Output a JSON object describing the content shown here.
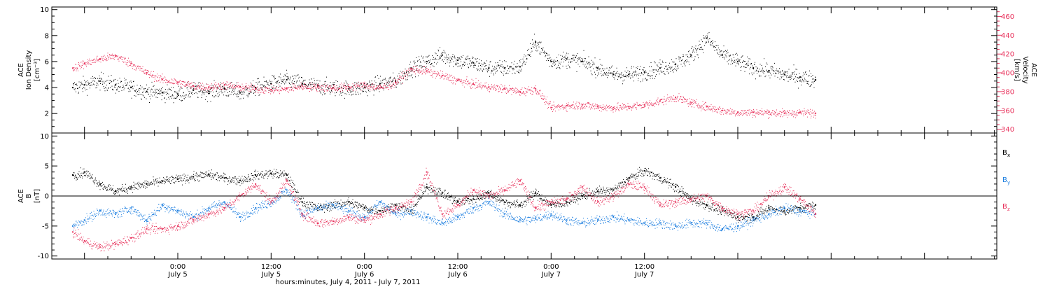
{
  "chart_data": [
    {
      "type": "scatter",
      "panel": "top",
      "ylabel_left": [
        "ACE",
        "Ion Density",
        "[cm⁻³]"
      ],
      "ylabel_right": [
        "ACE",
        "Velocity",
        "[km/s]"
      ],
      "y_ticks_left": [
        "2",
        "4",
        "6",
        "8",
        "10"
      ],
      "y_ticks_right": [
        "340",
        "360",
        "380",
        "400",
        "420",
        "440",
        "460"
      ],
      "ylim_left": [
        0.5,
        10.2
      ],
      "ylim_right": [
        336,
        470
      ],
      "series": [
        {
          "key": "density",
          "color": "#000000",
          "axis": "left",
          "x_hours": [
            -13.5,
            -12,
            -10,
            -8,
            -6,
            -4,
            -2,
            0,
            2,
            4,
            6,
            8,
            10,
            12,
            14,
            16,
            18,
            20,
            22,
            24,
            26,
            28,
            30,
            32,
            34,
            36,
            38,
            40,
            42,
            44,
            46,
            48,
            50,
            52,
            54,
            56,
            58,
            60,
            62,
            64,
            66,
            68,
            70,
            72,
            74,
            76,
            78,
            80,
            82
          ],
          "values": [
            4.0,
            4.2,
            4.5,
            4.2,
            4.0,
            3.7,
            3.6,
            3.5,
            3.8,
            3.7,
            3.9,
            3.6,
            4.0,
            4.3,
            4.6,
            4.3,
            4.1,
            4.0,
            3.9,
            4.0,
            4.3,
            4.5,
            5.5,
            6.0,
            6.5,
            6.1,
            5.9,
            5.5,
            5.5,
            5.6,
            7.5,
            6.0,
            6.2,
            6.0,
            5.5,
            5.0,
            5.0,
            5.2,
            5.5,
            5.8,
            6.5,
            7.8,
            6.5,
            6.0,
            5.5,
            5.3,
            5.0,
            4.8,
            4.6
          ]
        },
        {
          "key": "velocity",
          "color": "#e8335d",
          "axis": "right",
          "x_hours": [
            -13.5,
            -12,
            -10,
            -8,
            -6,
            -4,
            -2,
            0,
            2,
            4,
            6,
            8,
            10,
            12,
            14,
            16,
            18,
            20,
            22,
            24,
            26,
            28,
            30,
            32,
            34,
            36,
            38,
            40,
            42,
            44,
            46,
            48,
            50,
            52,
            54,
            56,
            58,
            60,
            62,
            64,
            66,
            68,
            70,
            72,
            74,
            76,
            78,
            80,
            82
          ],
          "values": [
            405,
            410,
            415,
            418,
            410,
            400,
            393,
            390,
            386,
            385,
            387,
            385,
            383,
            382,
            383,
            386,
            385,
            384,
            385,
            387,
            384,
            390,
            404,
            402,
            397,
            392,
            388,
            385,
            383,
            380,
            383,
            363,
            365,
            366,
            364,
            363,
            364,
            366,
            370,
            374,
            368,
            364,
            360,
            358,
            358,
            358,
            357,
            358,
            357
          ]
        }
      ]
    },
    {
      "type": "scatter",
      "panel": "bottom",
      "ylabel_left": [
        "ACE",
        "B",
        "[nT]"
      ],
      "y_ticks_left": [
        "-10",
        "-5",
        "0",
        "5",
        "10"
      ],
      "ylim_left": [
        -10.5,
        10.5
      ],
      "x_ticks": [
        {
          "time": "0:00",
          "date": "July 5"
        },
        {
          "time": "12:00",
          "date": "July 5"
        },
        {
          "time": "0:00",
          "date": "July 6"
        },
        {
          "time": "12:00",
          "date": "July 6"
        },
        {
          "time": "0:00",
          "date": "July 7"
        },
        {
          "time": "12:00",
          "date": "July 7"
        }
      ],
      "xlabel": "hours:minutes, July  4, 2011 - July  7, 2011",
      "series": [
        {
          "key": "bx",
          "label": "B",
          "sub": "x",
          "color": "#000000",
          "x_hours": [
            -13.5,
            -12,
            -10,
            -8,
            -6,
            -4,
            -2,
            0,
            2,
            4,
            6,
            8,
            10,
            12,
            14,
            16,
            18,
            20,
            22,
            24,
            26,
            28,
            30,
            32,
            34,
            36,
            38,
            40,
            42,
            44,
            46,
            48,
            50,
            52,
            54,
            56,
            58,
            60,
            62,
            64,
            66,
            68,
            70,
            72,
            74,
            76,
            78,
            80,
            82
          ],
          "values": [
            3.5,
            4.0,
            2.0,
            0.8,
            1.5,
            2.0,
            2.5,
            2.8,
            3.2,
            3.6,
            3.0,
            2.6,
            3.5,
            3.8,
            3.5,
            -1.0,
            -2.0,
            -1.5,
            -1.0,
            -2.0,
            -2.5,
            -1.5,
            -2.5,
            1.5,
            0.5,
            -1.0,
            -0.5,
            0.5,
            -1.0,
            -1.5,
            0.5,
            -1.5,
            -1.0,
            0.0,
            0.8,
            1.0,
            3.0,
            4.2,
            3.0,
            1.5,
            -0.5,
            -1.5,
            -2.5,
            -3.5,
            -3.5,
            -2.0,
            -2.5,
            -2.0,
            -1.5
          ]
        },
        {
          "key": "by",
          "label": "B",
          "sub": "y",
          "color": "#1e7fe0",
          "x_hours": [
            -13.5,
            -12,
            -10,
            -8,
            -6,
            -4,
            -2,
            0,
            2,
            4,
            6,
            8,
            10,
            12,
            14,
            16,
            18,
            20,
            22,
            24,
            26,
            28,
            30,
            32,
            34,
            36,
            38,
            40,
            42,
            44,
            46,
            48,
            50,
            52,
            54,
            56,
            58,
            60,
            62,
            64,
            66,
            68,
            70,
            72,
            74,
            76,
            78,
            80,
            82
          ],
          "values": [
            -5.0,
            -4.0,
            -2.5,
            -3.0,
            -2.0,
            -4.0,
            -1.5,
            -2.5,
            -3.5,
            -2.0,
            -1.0,
            -3.5,
            -2.0,
            -1.0,
            1.0,
            -3.0,
            -2.0,
            -1.5,
            -2.5,
            -3.5,
            -1.0,
            -3.0,
            -2.5,
            -3.5,
            -4.5,
            -3.5,
            -2.0,
            -1.0,
            -3.0,
            -4.0,
            -3.8,
            -3.0,
            -4.0,
            -4.5,
            -4.0,
            -3.5,
            -4.0,
            -4.5,
            -4.5,
            -5.0,
            -4.5,
            -4.5,
            -5.5,
            -5.0,
            -4.0,
            -3.0,
            -2.0,
            -2.5,
            -3.0
          ]
        },
        {
          "key": "bz",
          "label": "B",
          "sub": "z",
          "color": "#e8335d",
          "x_hours": [
            -13.5,
            -12,
            -10,
            -8,
            -6,
            -4,
            -2,
            0,
            2,
            4,
            6,
            8,
            10,
            12,
            14,
            16,
            18,
            20,
            22,
            24,
            26,
            28,
            30,
            32,
            34,
            36,
            38,
            40,
            42,
            44,
            46,
            48,
            50,
            52,
            54,
            56,
            58,
            60,
            62,
            64,
            66,
            68,
            70,
            72,
            74,
            76,
            78,
            80,
            82
          ],
          "values": [
            -6.0,
            -7.5,
            -8.5,
            -8.0,
            -7.0,
            -5.5,
            -5.5,
            -5.0,
            -4.0,
            -3.0,
            -2.0,
            0.0,
            2.0,
            -1.0,
            2.5,
            -3.0,
            -4.5,
            -4.2,
            -3.5,
            -4.0,
            -3.0,
            -2.0,
            -1.0,
            4.0,
            -3.0,
            -1.5,
            1.0,
            0.0,
            1.0,
            2.5,
            -2.0,
            -1.0,
            -0.5,
            1.5,
            -1.0,
            0.0,
            2.0,
            1.5,
            -1.5,
            -1.0,
            -0.5,
            0.0,
            -2.0,
            -3.0,
            -2.5,
            0.0,
            1.5,
            -0.5,
            -3.0
          ]
        }
      ]
    }
  ]
}
